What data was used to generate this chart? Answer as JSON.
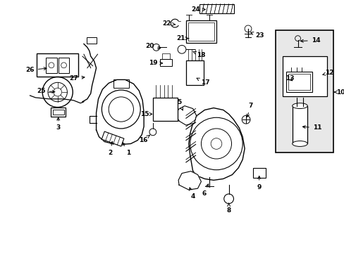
{
  "bg_color": "#ffffff",
  "line_color": "#000000",
  "text_color": "#000000",
  "box10_bg": "#e8e8e8",
  "figsize": [
    4.89,
    3.6
  ],
  "dpi": 100
}
